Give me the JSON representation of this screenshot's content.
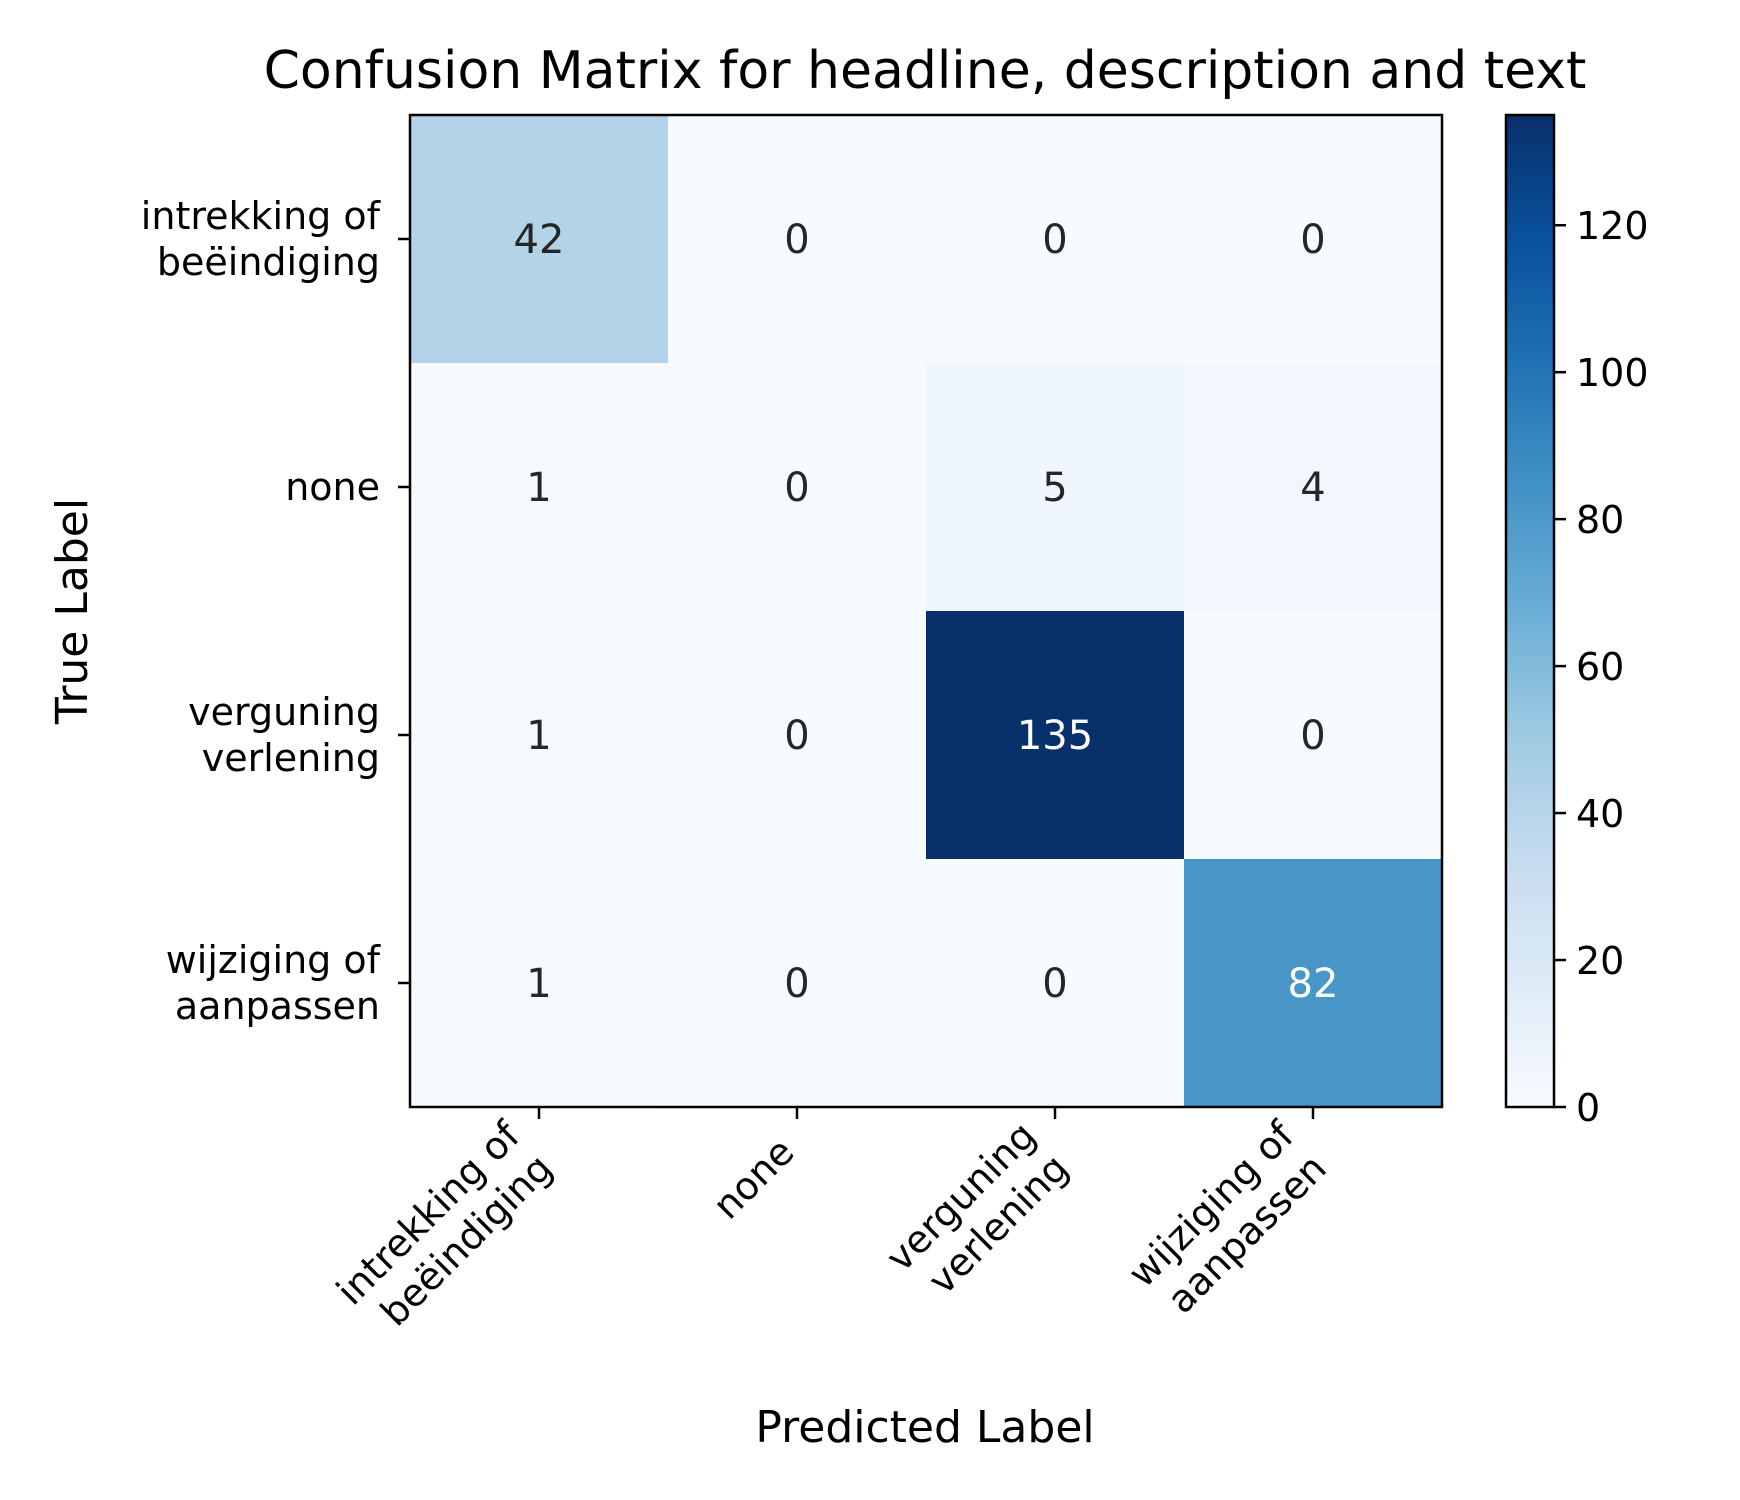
{
  "chart_data": {
    "type": "heatmap",
    "title": "Confusion Matrix for headline, description and text",
    "xlabel": "Predicted Label",
    "ylabel": "True Label",
    "row_labels": [
      [
        "intrekking of",
        "beëindiging"
      ],
      [
        "none"
      ],
      [
        "verguning",
        "verlening"
      ],
      [
        "wijziging of",
        "aanpassen"
      ]
    ],
    "col_labels": [
      [
        "intrekking of",
        "beëindiging"
      ],
      [
        "none"
      ],
      [
        "verguning",
        "verlening"
      ],
      [
        "wijziging of",
        "aanpassen"
      ]
    ],
    "matrix": [
      [
        42,
        0,
        0,
        0
      ],
      [
        1,
        0,
        5,
        4
      ],
      [
        1,
        0,
        135,
        0
      ],
      [
        1,
        0,
        0,
        82
      ]
    ],
    "colorbar": {
      "min": 0,
      "max": 135,
      "ticks": [
        0,
        20,
        40,
        60,
        80,
        100,
        120
      ]
    },
    "colormap": "Blues",
    "colors": {
      "low": "#f7fbff",
      "high": "#08306b",
      "text_dark": "#262626",
      "text_light": "#ffffff"
    }
  }
}
